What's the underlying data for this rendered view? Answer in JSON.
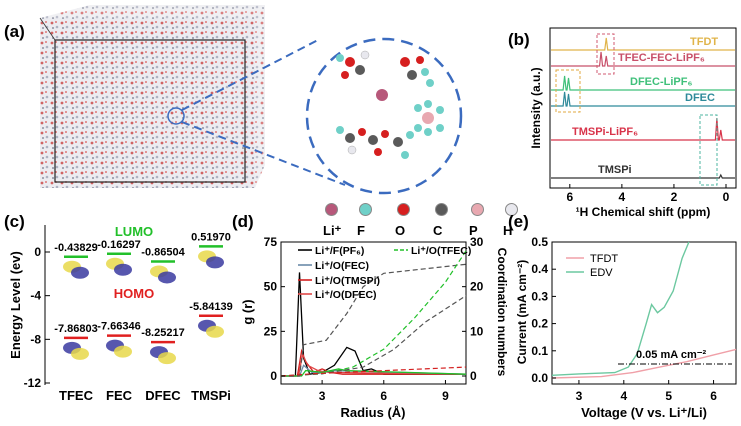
{
  "panels": {
    "a": "(a)",
    "b": "(b)",
    "c": "(c)",
    "d": "(d)",
    "e": "(e)"
  },
  "legend_atoms": [
    {
      "label": "Li⁺",
      "color": "#b7587a"
    },
    {
      "label": "F",
      "color": "#6fd0c8"
    },
    {
      "label": "O",
      "color": "#d61f1f"
    },
    {
      "label": "C",
      "color": "#5a5a5a"
    },
    {
      "label": "P",
      "color": "#e8a8b0"
    },
    {
      "label": "H",
      "color": "#e8e8ee"
    }
  ],
  "nmr": {
    "ylabel": "Intensity (a.u.)",
    "xlabel": "¹H Chemical shift (ppm)",
    "xticks": [
      "6",
      "4",
      "2",
      "0"
    ],
    "traces": [
      {
        "name": "TFDT",
        "color": "#e0b44a"
      },
      {
        "name": "TFEC-FEC-LiPF₆",
        "color": "#c8506a"
      },
      {
        "name": "DFEC-LiPF₆",
        "color": "#3fc07a"
      },
      {
        "name": "DFEC",
        "color": "#2f8a9a"
      },
      {
        "name": "TMSPi-LiPF₆",
        "color": "#d8344a"
      },
      {
        "name": "TMSPi",
        "color": "#333333"
      }
    ]
  },
  "energy": {
    "ylabel": "Energy Level (ev)",
    "lumo_label": "LUMO",
    "homo_label": "HOMO",
    "yticks": [
      "0",
      "-4",
      "-8",
      "-12"
    ],
    "molecules": [
      "TFEC",
      "FEC",
      "DFEC",
      "TMSPi"
    ],
    "lumo": [
      "-0.43829",
      "-0.16297",
      "-0.86504",
      "0.51970"
    ],
    "homo": [
      "-7.86803",
      "-7.66346",
      "-8.25217",
      "-5.84139"
    ],
    "lumo_color": "#22c02a",
    "homo_color": "#e02020"
  },
  "rdf": {
    "ylabel": "g (r)",
    "y2label": "Coordination numbers",
    "xlabel": "Radius (Å)",
    "yticks": [
      "0",
      "25",
      "50",
      "75"
    ],
    "y2ticks": [
      "0",
      "10",
      "20",
      "30"
    ],
    "xticks": [
      "3",
      "6",
      "9"
    ],
    "legend": [
      {
        "name": "Li⁺/F(PF₆)",
        "color": "#000000"
      },
      {
        "name": "Li⁺/O(TFEC)",
        "color": "#22c02a"
      },
      {
        "name": "Li⁺/O(FEC)",
        "color": "#6a8aa8"
      },
      {
        "name": "Li⁺/O(TMSPi)",
        "color": "#d42020"
      },
      {
        "name": "Li⁺/O(DFEC)",
        "color": "#e04848"
      }
    ]
  },
  "lsv": {
    "ylabel": "Current (mA cm⁻²)",
    "xlabel": "Voltage (V vs. Li⁺/Li)",
    "yticks": [
      "0.0",
      "0.1",
      "0.2",
      "0.3",
      "0.4",
      "0.5"
    ],
    "xticks": [
      "3",
      "4",
      "5",
      "6"
    ],
    "annotation": "0.05 mA cm⁻²",
    "legend": [
      {
        "name": "TFDT",
        "color": "#f0a0a8"
      },
      {
        "name": "EDV",
        "color": "#6cc8a0"
      }
    ]
  }
}
